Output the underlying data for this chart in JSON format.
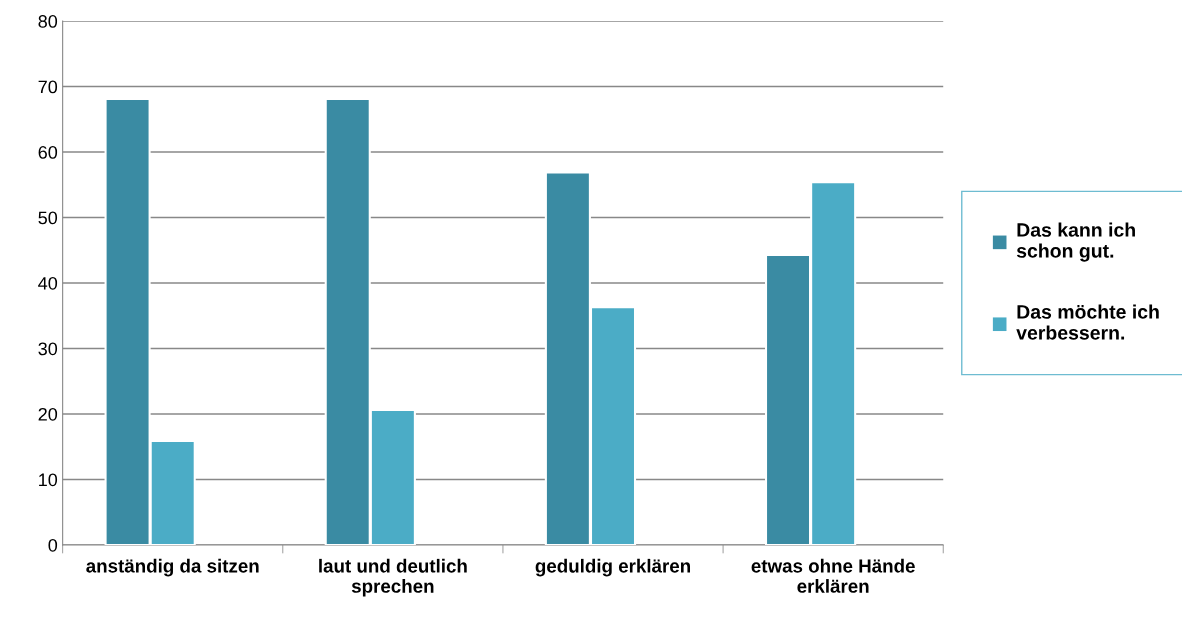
{
  "chart_data": {
    "type": "bar",
    "categories": [
      "anständig da sitzen",
      "laut und deutlich\nsprechen",
      "geduldig erklären",
      "etwas ohne Hände\nerklären"
    ],
    "series": [
      {
        "name": "Das kann ich\nschon gut.",
        "color": "#3a8ba3",
        "values": [
          68.1,
          68.1,
          56.9,
          44.3
        ]
      },
      {
        "name": "Das möchte ich\nverbessern.",
        "color": "#4bacc6",
        "values": [
          15.9,
          20.6,
          36.3,
          55.4
        ]
      }
    ],
    "ylim": [
      0,
      80
    ],
    "yticks": [
      0,
      10,
      20,
      30,
      40,
      50,
      60,
      70,
      80
    ],
    "grid": "y",
    "legend": "right"
  }
}
